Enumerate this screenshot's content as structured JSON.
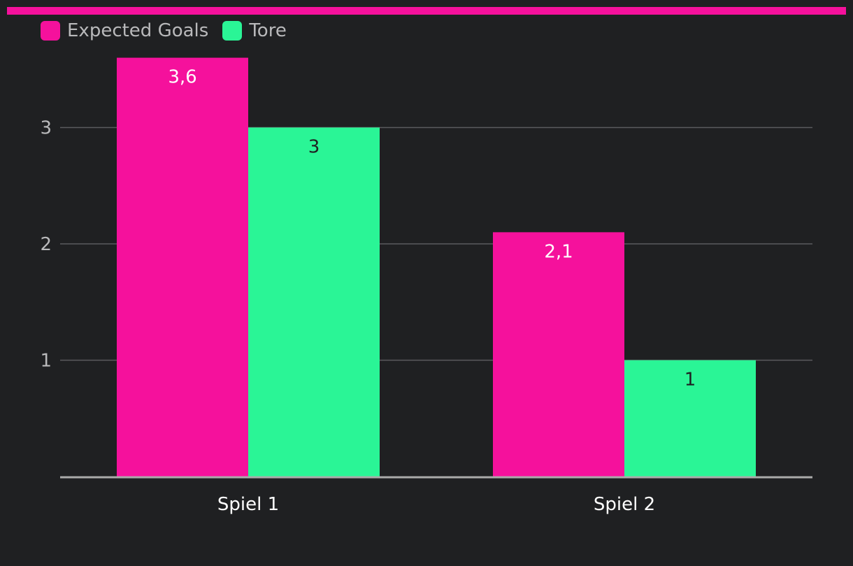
{
  "colors": {
    "background": "#1f2022",
    "accent_bar": "#f5119c",
    "gridline": "#5a5b5e",
    "axis": "#aaaaaa"
  },
  "legend": {
    "items": [
      {
        "label": "Expected Goals",
        "color": "#f5119c"
      },
      {
        "label": "Tore",
        "color": "#2af596"
      }
    ]
  },
  "chart_data": {
    "type": "bar",
    "categories": [
      "Spiel 1",
      "Spiel 2"
    ],
    "series": [
      {
        "name": "Expected Goals",
        "values": [
          3.6,
          2.1
        ],
        "labels": [
          "3,6",
          "2,1"
        ],
        "color": "#f5119c",
        "label_color": "#ffffff"
      },
      {
        "name": "Tore",
        "values": [
          3,
          1
        ],
        "labels": [
          "3",
          "1"
        ],
        "color": "#2af596",
        "label_color": "#1f2022"
      }
    ],
    "yticks": [
      1,
      2,
      3
    ],
    "ylim": [
      0,
      3.6
    ],
    "grid": true,
    "legend_position": "top-left"
  }
}
